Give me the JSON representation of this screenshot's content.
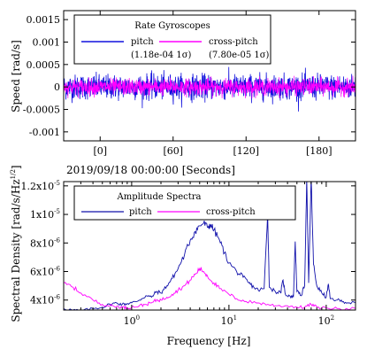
{
  "chart_data": [
    {
      "type": "line",
      "legend_title": "Rate Gyroscopes",
      "ylabel": "Speed [rad/s]",
      "xlabel": "2019/09/18 00:00:00 [Seconds]",
      "x_ticks": [
        0,
        60,
        120,
        180
      ],
      "x_tick_labels": [
        "[0]",
        "[60]",
        "[120]",
        "[180]"
      ],
      "xlim": [
        -30,
        210
      ],
      "ylim": [
        -0.0012,
        0.0017
      ],
      "y_ticks": [
        -0.001,
        -0.0005,
        0,
        0.0005,
        0.001,
        0.0015
      ],
      "y_tick_labels": [
        "-0.001",
        "-0.0005",
        "0",
        "0.0005",
        "0.001",
        "0.0015"
      ],
      "legend_position": "top-left",
      "grid": false,
      "series": [
        {
          "name": "pitch",
          "note": "(1.18e-04 1σ)",
          "color": "#1010dd",
          "sigma": 0.000118,
          "peak_min": -0.00058,
          "peak_max": 0.00048
        },
        {
          "name": "cross-pitch",
          "note": "(7.80e-05 1σ)",
          "color": "#ff00ff",
          "sigma": 7.8e-05,
          "peak_min": -0.00025,
          "peak_max": 0.00025
        }
      ]
    },
    {
      "type": "line",
      "legend_title": "Amplitude Spectra",
      "ylabel": "Spectral Density [rad/s/Hz",
      "ylabel_sup": "1/2",
      "ylabel_end": "]",
      "xlabel": "Frequency [Hz]",
      "xscale": "log",
      "xlim": [
        0.2,
        200
      ],
      "x_ticks": [
        1,
        10,
        100
      ],
      "x_tick_labels": [
        {
          "base": "10",
          "exp": "0"
        },
        {
          "base": "10",
          "exp": "1"
        },
        {
          "base": "10",
          "exp": "2"
        }
      ],
      "ylim": [
        3.3e-06,
        1.23e-05
      ],
      "y_ticks": [
        4e-06,
        6e-06,
        8e-06,
        1e-05,
        1.2e-05
      ],
      "y_tick_labels": [
        {
          "base": "4x10",
          "exp": "-6"
        },
        {
          "base": "6x10",
          "exp": "-6"
        },
        {
          "base": "8x10",
          "exp": "-6"
        },
        {
          "base": "1x10",
          "exp": "-5"
        },
        {
          "base": "1.2x10",
          "exp": "-5"
        }
      ],
      "legend_position": "top-left",
      "grid": false,
      "series": [
        {
          "name": "pitch",
          "color": "#1010aa",
          "points": [
            [
              0.2,
              3.4e-06
            ],
            [
              0.25,
              3.3e-06
            ],
            [
              0.3,
              3.25e-06
            ],
            [
              0.4,
              3.4e-06
            ],
            [
              0.5,
              3.5e-06
            ],
            [
              0.6,
              3.7e-06
            ],
            [
              0.7,
              3.8e-06
            ],
            [
              0.8,
              3.7e-06
            ],
            [
              0.9,
              3.75e-06
            ],
            [
              1.0,
              3.8e-06
            ],
            [
              1.2,
              4e-06
            ],
            [
              1.4,
              4.3e-06
            ],
            [
              1.6,
              4.2e-06
            ],
            [
              1.8,
              4.6e-06
            ],
            [
              2.0,
              4.5e-06
            ],
            [
              2.3,
              5e-06
            ],
            [
              2.6,
              5.5e-06
            ],
            [
              3.0,
              6.2e-06
            ],
            [
              3.5,
              7.2e-06
            ],
            [
              4.0,
              8.2e-06
            ],
            [
              4.5,
              8.8e-06
            ],
            [
              5.0,
              9.2e-06
            ],
            [
              5.5,
              9.4e-06
            ],
            [
              6.0,
              9.1e-06
            ],
            [
              6.5,
              9.3e-06
            ],
            [
              7.0,
              8.9e-06
            ],
            [
              8.0,
              8.2e-06
            ],
            [
              9.0,
              7.3e-06
            ],
            [
              10.0,
              6.6e-06
            ],
            [
              12.0,
              6e-06
            ],
            [
              14.0,
              5.6e-06
            ],
            [
              16.0,
              5.2e-06
            ],
            [
              18.0,
              4.9e-06
            ],
            [
              20.0,
              4.7e-06
            ],
            [
              23.0,
              4.8e-06
            ],
            [
              25.0,
              1.01e-05
            ],
            [
              26.0,
              4.9e-06
            ],
            [
              30.0,
              4.6e-06
            ],
            [
              34.0,
              4.5e-06
            ],
            [
              36.0,
              5.4e-06
            ],
            [
              38.0,
              4.4e-06
            ],
            [
              42.0,
              4.3e-06
            ],
            [
              46.0,
              4.2e-06
            ],
            [
              48.0,
              8.1e-06
            ],
            [
              50.0,
              4.6e-06
            ],
            [
              55.0,
              4.3e-06
            ],
            [
              60.0,
              5e-06
            ],
            [
              63.0,
              1.25e-05
            ],
            [
              66.0,
              5.2e-06
            ],
            [
              70.0,
              1.25e-05
            ],
            [
              74.0,
              6.5e-06
            ],
            [
              80.0,
              5e-06
            ],
            [
              90.0,
              4.5e-06
            ],
            [
              100.0,
              4.2e-06
            ],
            [
              105.0,
              5.1e-06
            ],
            [
              110.0,
              4.1e-06
            ],
            [
              130.0,
              4e-06
            ],
            [
              150.0,
              3.9e-06
            ],
            [
              175.0,
              3.8e-06
            ],
            [
              200.0,
              3.8e-06
            ]
          ]
        },
        {
          "name": "cross-pitch",
          "color": "#ff00ff",
          "points": [
            [
              0.2,
              5.2e-06
            ],
            [
              0.25,
              4.9e-06
            ],
            [
              0.3,
              4.5e-06
            ],
            [
              0.4,
              4e-06
            ],
            [
              0.5,
              3.7e-06
            ],
            [
              0.6,
              3.6e-06
            ],
            [
              0.7,
              3.55e-06
            ],
            [
              0.8,
              3.5e-06
            ],
            [
              0.9,
              3.45e-06
            ],
            [
              1.0,
              3.5e-06
            ],
            [
              1.2,
              3.6e-06
            ],
            [
              1.4,
              3.7e-06
            ],
            [
              1.6,
              3.8e-06
            ],
            [
              1.8,
              4e-06
            ],
            [
              2.0,
              4e-06
            ],
            [
              2.3,
              4.2e-06
            ],
            [
              2.6,
              4.4e-06
            ],
            [
              3.0,
              4.7e-06
            ],
            [
              3.5,
              5e-06
            ],
            [
              4.0,
              5.4e-06
            ],
            [
              4.5,
              5.8e-06
            ],
            [
              5.0,
              6.2e-06
            ],
            [
              5.5,
              6e-06
            ],
            [
              6.0,
              5.7e-06
            ],
            [
              7.0,
              5.2e-06
            ],
            [
              8.0,
              4.8e-06
            ],
            [
              10.0,
              4.4e-06
            ],
            [
              12.0,
              4.1e-06
            ],
            [
              15.0,
              3.9e-06
            ],
            [
              20.0,
              3.8e-06
            ],
            [
              25.0,
              3.7e-06
            ],
            [
              30.0,
              3.6e-06
            ],
            [
              40.0,
              3.6e-06
            ],
            [
              50.0,
              3.5e-06
            ],
            [
              60.0,
              3.5e-06
            ],
            [
              70.0,
              3.7e-06
            ],
            [
              80.0,
              3.5e-06
            ],
            [
              100.0,
              3.45e-06
            ],
            [
              130.0,
              3.4e-06
            ],
            [
              160.0,
              3.4e-06
            ],
            [
              200.0,
              3.4e-06
            ]
          ]
        }
      ]
    }
  ]
}
